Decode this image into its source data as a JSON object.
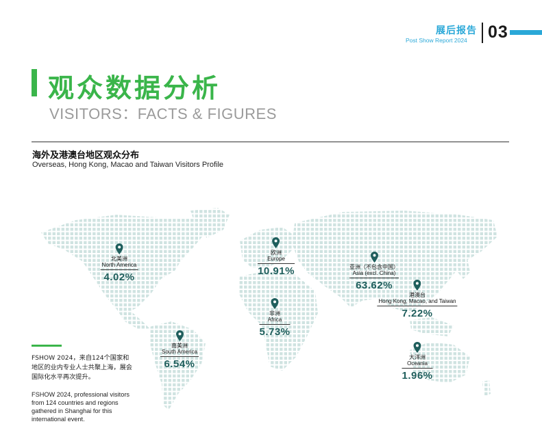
{
  "header": {
    "title_cn": "展后报告",
    "title_en": "Post Show Report 2024",
    "page_number": "03",
    "accent_color": "#2aa8d8"
  },
  "title": {
    "cn": "观众数据分析",
    "en": "VISITORS：FACTS & FIGURES",
    "color": "#3ab54a"
  },
  "section": {
    "cn": "海外及港澳台地区观众分布",
    "en": "Overseas, Hong Kong, Macao and Taiwan Visitors Profile"
  },
  "regions": [
    {
      "id": "north-america",
      "cn": "北美洲",
      "en": "North America",
      "pct": "4.02%",
      "icon": "map-pin-icon"
    },
    {
      "id": "europe",
      "cn": "欧洲",
      "en": "Europe",
      "pct": "10.91%",
      "icon": "map-pin-icon"
    },
    {
      "id": "asia",
      "cn": "亚洲（不包含中国）",
      "en": "Asia (excl. China)",
      "pct": "63.62%",
      "icon": "map-pin-icon"
    },
    {
      "id": "hk-macao-taiwan",
      "cn": "港澳台",
      "en": "Hong Kong, Macao, and Taiwan",
      "pct": "7.22%",
      "icon": "map-pin-icon"
    },
    {
      "id": "africa",
      "cn": "非洲",
      "en": "Africa",
      "pct": "5.73%",
      "icon": "map-pin-icon"
    },
    {
      "id": "south-america",
      "cn": "南美洲",
      "en": "South America",
      "pct": "6.54%",
      "icon": "map-pin-icon"
    },
    {
      "id": "oceania",
      "cn": "大洋洲",
      "en": "Oceania",
      "pct": "1.96%",
      "icon": "map-pin-icon"
    }
  ],
  "note": {
    "cn": "FSHOW 2024，来自124个国家和地区的业内专业人士共聚上海，展会国际化水平再次提升。",
    "en": "FSHOW 2024, professional visitors from 124 countries and regions gathered in Shanghai for this international event."
  },
  "colors": {
    "map_dots": "#cfe3e1",
    "pin": "#1f5e5c",
    "percent": "#1f5e5c"
  }
}
